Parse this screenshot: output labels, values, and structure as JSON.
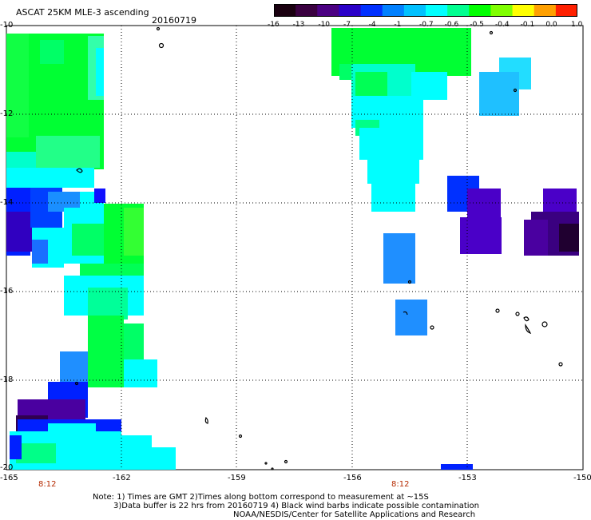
{
  "header": {
    "title": "ASCAT 25KM MLE-3 ascending",
    "date": "20160719"
  },
  "colorbar": {
    "ticks": [
      "-16",
      "-13",
      "-10",
      "-7",
      "-4",
      "-1",
      "-0.7",
      "-0.6",
      "-0.5",
      "-0.4",
      "-0.1",
      "0.0",
      "1.0"
    ],
    "colors": [
      "#1a0010",
      "#3a0040",
      "#4b0082",
      "#2a00c8",
      "#0030ff",
      "#0080ff",
      "#00c0ff",
      "#00ffff",
      "#00ff90",
      "#00ff00",
      "#80ff00",
      "#ffff00",
      "#ffa000",
      "#ff2000"
    ]
  },
  "axes": {
    "y_labels": [
      "-10",
      "-12",
      "-14",
      "-16",
      "-18",
      "-20"
    ],
    "x_labels": [
      "-165",
      "-162",
      "-159",
      "-156",
      "-153",
      "-150"
    ],
    "time_labels": [
      "8:12",
      "8:12"
    ]
  },
  "palette": {
    "green": "#00ff33",
    "green2": "#33ff33",
    "cyan": "#00ffff",
    "aqua": "#22ddff",
    "blue": "#1f8fff",
    "deepblue": "#0022ff",
    "violet": "#4a00c8",
    "purple": "#3a0080",
    "darkpurple": "#300040"
  },
  "notes": {
    "line1": "Note: 1) Times are GMT 2)Times along bottom correspond to measurement at ~15S",
    "line2": "3)Data buffer is 22 hrs from 20160719 4) Black wind barbs indicate possible contamination",
    "line3": "NOAA/NESDIS/Center for Satellite Applications and Research"
  }
}
